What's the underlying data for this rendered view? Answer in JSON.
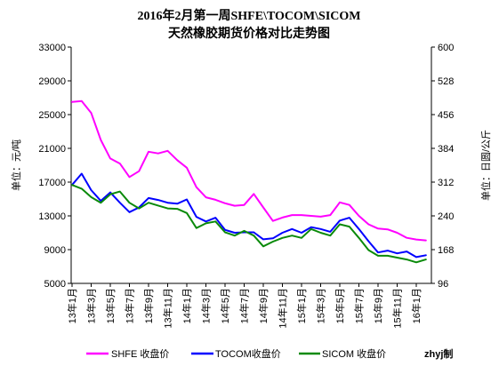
{
  "chart_data": {
    "type": "line",
    "title": "2016年2月第一周SHFE\\TOCOM\\SICOM",
    "subtitle": "天然橡胶期货价格对比走势图",
    "ylabel": "单位：元/吨",
    "y2label": "单位：日圆/公斤",
    "ylim": [
      5000,
      33000
    ],
    "y2lim": [
      96,
      600
    ],
    "yticks": [
      33000,
      29000,
      25000,
      21000,
      17000,
      13000,
      9000,
      5000
    ],
    "y2ticks": [
      600,
      528,
      456,
      384,
      312,
      240,
      168,
      96
    ],
    "xticks": [
      "13年1月",
      "13年3月",
      "13年5月",
      "13年7月",
      "13年9月",
      "13年11月",
      "14年1月",
      "14年3月",
      "14年5月",
      "14年7月",
      "14年9月",
      "14年11月",
      "15年1月",
      "15年3月",
      "15年5月",
      "15年7月",
      "15年9月",
      "15年11月",
      "16年1月"
    ],
    "grid": false,
    "legend_position": "bottom",
    "x": [
      "2013-01",
      "2013-02",
      "2013-03",
      "2013-04",
      "2013-05",
      "2013-06",
      "2013-07",
      "2013-08",
      "2013-09",
      "2013-10",
      "2013-11",
      "2013-12",
      "2014-01",
      "2014-02",
      "2014-03",
      "2014-04",
      "2014-05",
      "2014-06",
      "2014-07",
      "2014-08",
      "2014-09",
      "2014-10",
      "2014-11",
      "2014-12",
      "2015-01",
      "2015-02",
      "2015-03",
      "2015-04",
      "2015-05",
      "2015-06",
      "2015-07",
      "2015-08",
      "2015-09",
      "2015-10",
      "2015-11",
      "2015-12",
      "2016-01",
      "2016-02"
    ],
    "series": [
      {
        "name": "SHFE 收盘价",
        "axis": "left",
        "color": "#ff00ff",
        "values": [
          26500,
          26600,
          25200,
          22000,
          19800,
          19200,
          17600,
          18300,
          20600,
          20400,
          20700,
          19600,
          18700,
          16400,
          15200,
          14900,
          14500,
          14200,
          14300,
          15600,
          14000,
          12400,
          12800,
          13100,
          13100,
          13000,
          12900,
          13100,
          14600,
          14300,
          13000,
          12000,
          11500,
          11400,
          11000,
          10400,
          10200,
          10100
        ]
      },
      {
        "name": "TOCOM收盘价",
        "axis": "right",
        "color": "#0000ff",
        "values": [
          306,
          330,
          295,
          272,
          290,
          268,
          248,
          258,
          278,
          274,
          268,
          266,
          275,
          238,
          228,
          236,
          210,
          204,
          205,
          205,
          190,
          192,
          204,
          212,
          204,
          216,
          212,
          206,
          230,
          236,
          212,
          186,
          162,
          166,
          160,
          164,
          152,
          156
        ]
      },
      {
        "name": "SICOM 收盘价",
        "axis": "right",
        "color": "#0a8a0a",
        "values": [
          306,
          298,
          280,
          268,
          286,
          292,
          268,
          256,
          268,
          262,
          256,
          255,
          246,
          214,
          224,
          228,
          205,
          198,
          208,
          198,
          175,
          185,
          193,
          198,
          193,
          212,
          204,
          198,
          222,
          217,
          193,
          167,
          155,
          155,
          151,
          147,
          141,
          147
        ]
      }
    ],
    "credit": "zhyj制"
  }
}
